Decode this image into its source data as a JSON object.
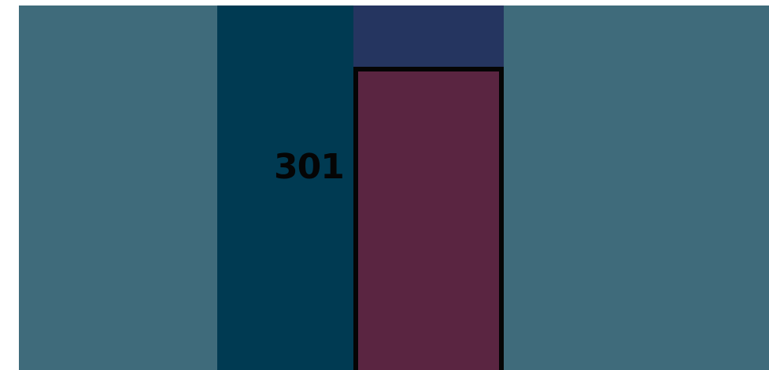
{
  "visual": {
    "label_text": "301",
    "colors": {
      "outer_panel": "#3f6b7b",
      "center_panel": "#003a52",
      "top_band": "#253560",
      "selected_panel": "#5a2541",
      "outline": "#050505",
      "background": "#ffffff"
    }
  }
}
